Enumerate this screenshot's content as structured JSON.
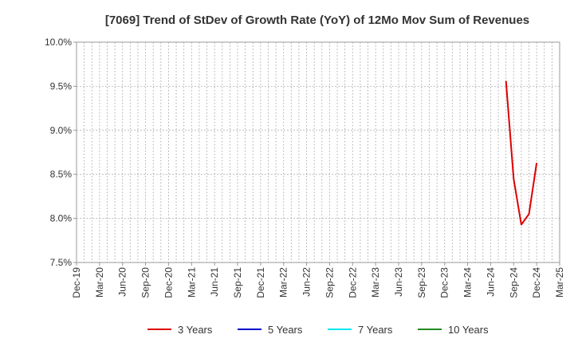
{
  "chart_data": {
    "type": "line",
    "title": "[7069]  Trend of StDev of Growth Rate (YoY) of 12Mo Mov Sum of Revenues",
    "xlabel": "",
    "ylabel": "",
    "x_ticks": [
      "Dec-19",
      "Mar-20",
      "Jun-20",
      "Sep-20",
      "Dec-20",
      "Mar-21",
      "Jun-21",
      "Sep-21",
      "Dec-21",
      "Mar-22",
      "Jun-22",
      "Sep-22",
      "Dec-22",
      "Mar-23",
      "Jun-23",
      "Sep-23",
      "Dec-23",
      "Mar-24",
      "Jun-24",
      "Sep-24",
      "Dec-24",
      "Mar-25"
    ],
    "y_ticks": [
      "7.5%",
      "8.0%",
      "8.5%",
      "9.0%",
      "9.5%",
      "10.0%"
    ],
    "ylim": [
      7.5,
      10.0
    ],
    "xlim": [
      "2019-12",
      "2025-03"
    ],
    "grid": true,
    "legend_position": "bottom",
    "series": [
      {
        "name": "3 Years",
        "color": "#dd0000",
        "x": [
          "2024-08",
          "2024-09",
          "2024-10",
          "2024-11",
          "2024-12"
        ],
        "values": [
          9.56,
          8.45,
          7.93,
          8.05,
          8.63
        ]
      },
      {
        "name": "5 Years",
        "color": "#0000cc",
        "x": [],
        "values": []
      },
      {
        "name": "7 Years",
        "color": "#00e5ee",
        "x": [],
        "values": []
      },
      {
        "name": "10 Years",
        "color": "#228b22",
        "x": [],
        "values": []
      }
    ]
  }
}
